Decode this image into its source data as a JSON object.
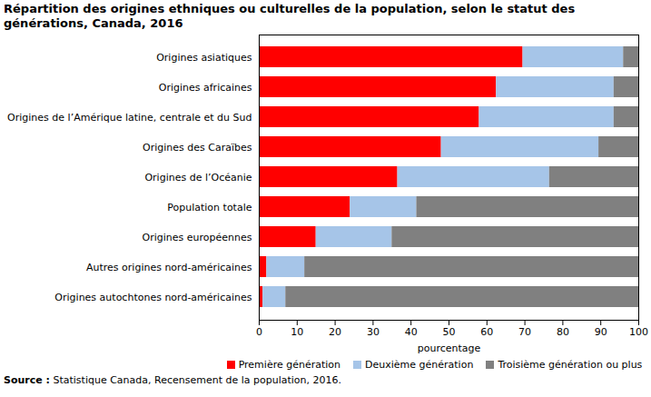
{
  "chart_data": {
    "type": "bar",
    "orientation": "horizontal",
    "stacked": true,
    "title": "Répartition des origines ethniques ou culturelles de la population, selon le statut des générations, Canada, 2016",
    "x_label": "pourcentage",
    "source_label": "Source :",
    "source": "Statistique Canada, Recensement de la population, 2016.",
    "categories": [
      "Origines asiatiques",
      "Origines africaines",
      "Origines de l’Amérique latine, centrale et du Sud",
      "Origines des Caraïbes",
      "Origines de l’Océanie",
      "Population totale",
      "Origines européennes",
      "Autres origines nord-américaines",
      "Origines autochtones nord-américaines"
    ],
    "series": [
      {
        "name": "Première génération",
        "color": "#ff0000",
        "values": [
          69.5,
          62.5,
          58,
          48,
          36.5,
          24,
          15,
          2,
          1
        ]
      },
      {
        "name": "Deuxième génération",
        "color": "#a6c5e8",
        "values": [
          26.5,
          31,
          35.5,
          41.5,
          40,
          17.5,
          20,
          10,
          6
        ]
      },
      {
        "name": "Troisième génération ou plus",
        "color": "#808080",
        "values": [
          4,
          6.5,
          6.5,
          10.5,
          23.5,
          58.5,
          65,
          88,
          93
        ]
      }
    ],
    "xlim": [
      0,
      100
    ],
    "xticks": [
      0,
      10,
      20,
      30,
      40,
      50,
      60,
      70,
      80,
      90,
      100
    ],
    "grid": false,
    "legend": "bottom"
  }
}
